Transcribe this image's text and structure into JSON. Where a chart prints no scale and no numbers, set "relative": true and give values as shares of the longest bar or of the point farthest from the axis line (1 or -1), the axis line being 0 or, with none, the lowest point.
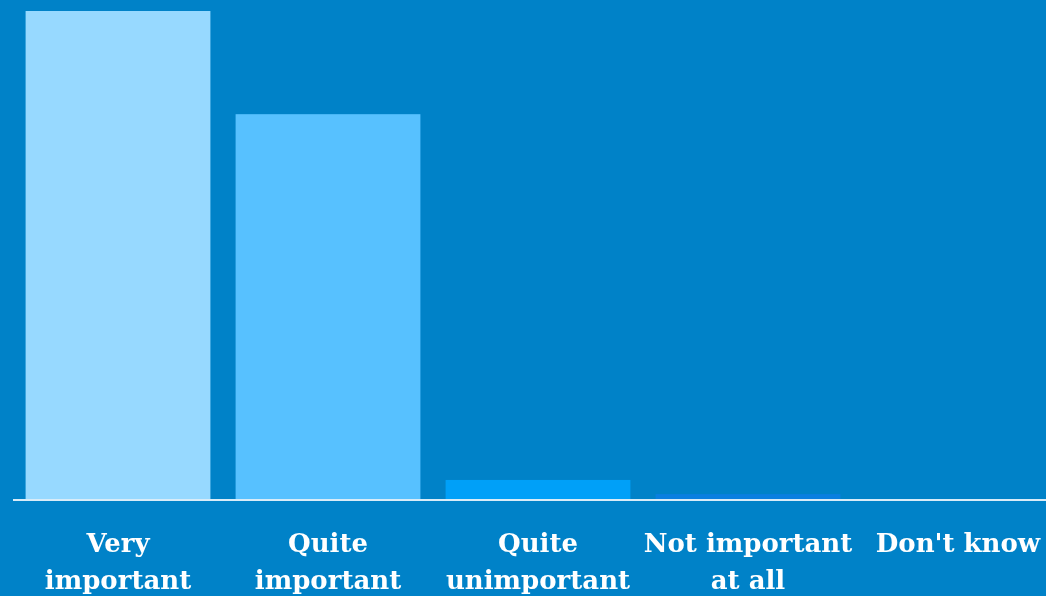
{
  "chart_data": {
    "type": "bar",
    "relative": true,
    "categories": [
      "Very important",
      "Quite important",
      "Quite unimportant",
      "Not important at all",
      "Don't know"
    ],
    "values": [
      1,
      0.789,
      0.041,
      0.012,
      0
    ],
    "colors": [
      "#97d9ff",
      "#57c1ff",
      "#00a0f8",
      "#0a7fe0",
      "#0a7fe0"
    ]
  }
}
